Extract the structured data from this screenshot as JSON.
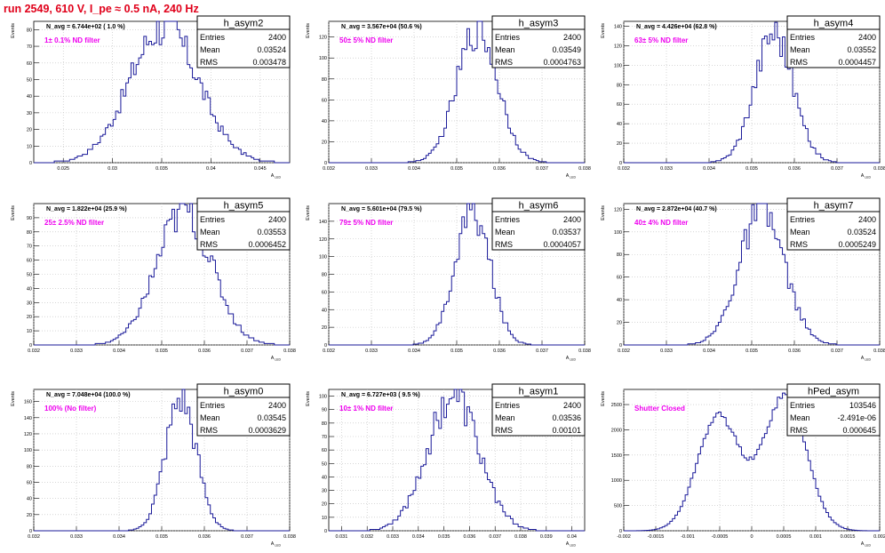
{
  "page_title": "run 2549,   610 V, I_pe ≈ 0.5 nA, 240 Hz",
  "stats_labels": {
    "entries": "Entries",
    "mean": "Mean",
    "rms": "RMS"
  },
  "colors": {
    "hist": "#1a1a99",
    "magenta": "#ee00ee",
    "title_red": "#e0001a",
    "grid": "#bdbdbd"
  },
  "chart_data": [
    {
      "type": "histogram",
      "name": "h_asym2",
      "nav_text": "N_avg = 6.744e+02 ( 1.0 %)",
      "filter": "1± 0.1% ND filter",
      "entries": "2400",
      "mean": "0.03524",
      "rms": "0.003478",
      "xlim": [
        0.022,
        0.048
      ],
      "ylim": [
        0,
        85
      ],
      "xticks": [
        "0.025",
        "0.03",
        "0.035",
        "0.04",
        "0.045"
      ],
      "xtick_values": [
        0.025,
        0.03,
        0.035,
        0.04,
        0.045
      ],
      "yticks": [
        0,
        10,
        20,
        30,
        40,
        50,
        60,
        70,
        80
      ],
      "xlabel": "A_LED",
      "ylabel": "Events",
      "bins": 100,
      "peak": 82,
      "sigma": 0.003478,
      "mu": 0.03524,
      "dist": "gauss"
    },
    {
      "type": "histogram",
      "name": "h_asym3",
      "nav_text": "N_avg = 3.567e+04 (50.6 %)",
      "filter": "50± 5% ND filter",
      "entries": "2400",
      "mean": "0.03549",
      "rms": "0.0004763",
      "xlim": [
        0.032,
        0.038
      ],
      "ylim": [
        0,
        135
      ],
      "xticks": [
        "0.032",
        "0.033",
        "0.034",
        "0.035",
        "0.036",
        "0.037",
        "0.038"
      ],
      "xtick_values": [
        0.032,
        0.033,
        0.034,
        0.035,
        0.036,
        0.037,
        0.038
      ],
      "yticks": [
        0,
        20,
        40,
        60,
        80,
        100,
        120
      ],
      "xlabel": "A_LED",
      "ylabel": "Events",
      "bins": 100,
      "peak": 128,
      "sigma": 0.0004763,
      "mu": 0.03549,
      "dist": "gauss"
    },
    {
      "type": "histogram",
      "name": "h_asym4",
      "nav_text": "N_avg = 4.426e+04 (62.8 %)",
      "filter": "63± 5% ND filter",
      "entries": "2400",
      "mean": "0.03552",
      "rms": "0.0004457",
      "xlim": [
        0.032,
        0.038
      ],
      "ylim": [
        0,
        145
      ],
      "xticks": [
        "0.032",
        "0.033",
        "0.034",
        "0.035",
        "0.036",
        "0.037",
        "0.038"
      ],
      "xtick_values": [
        0.032,
        0.033,
        0.034,
        0.035,
        0.036,
        0.037,
        0.038
      ],
      "yticks": [
        0,
        20,
        40,
        60,
        80,
        100,
        120,
        140
      ],
      "xlabel": "A_LED",
      "ylabel": "Events",
      "bins": 100,
      "peak": 135,
      "sigma": 0.0004457,
      "mu": 0.03552,
      "dist": "gauss"
    },
    {
      "type": "histogram",
      "name": "h_asym5",
      "nav_text": "N_avg = 1.822e+04 (25.9 %)",
      "filter": "25± 2.5% ND filter",
      "entries": "2400",
      "mean": "0.03553",
      "rms": "0.0006452",
      "xlim": [
        0.032,
        0.038
      ],
      "ylim": [
        0,
        100
      ],
      "xticks": [
        "0.032",
        "0.033",
        "0.034",
        "0.035",
        "0.036",
        "0.037",
        "0.038"
      ],
      "xtick_values": [
        0.032,
        0.033,
        0.034,
        0.035,
        0.036,
        0.037,
        0.038
      ],
      "yticks": [
        0,
        10,
        20,
        30,
        40,
        50,
        60,
        70,
        80,
        90
      ],
      "xlabel": "A_LED",
      "ylabel": "Events",
      "bins": 100,
      "peak": 95,
      "sigma": 0.0006452,
      "mu": 0.03553,
      "dist": "gauss"
    },
    {
      "type": "histogram",
      "name": "h_asym6",
      "nav_text": "N_avg = 5.601e+04 (79.5 %)",
      "filter": "79± 5% ND filter",
      "entries": "2400",
      "mean": "0.03537",
      "rms": "0.0004057",
      "xlim": [
        0.032,
        0.038
      ],
      "ylim": [
        0,
        160
      ],
      "xticks": [
        "0.032",
        "0.033",
        "0.034",
        "0.035",
        "0.036",
        "0.037",
        "0.038"
      ],
      "xtick_values": [
        0.032,
        0.033,
        0.034,
        0.035,
        0.036,
        0.037,
        0.038
      ],
      "yticks": [
        0,
        20,
        40,
        60,
        80,
        100,
        120,
        140
      ],
      "xlabel": "A_LED",
      "ylabel": "Events",
      "bins": 100,
      "peak": 152,
      "sigma": 0.0004057,
      "mu": 0.03537,
      "dist": "gauss"
    },
    {
      "type": "histogram",
      "name": "h_asym7",
      "nav_text": "N_avg = 2.872e+04 (40.7 %)",
      "filter": "40± 4% ND filter",
      "entries": "2400",
      "mean": "0.03524",
      "rms": "0.0005249",
      "xlim": [
        0.032,
        0.038
      ],
      "ylim": [
        0,
        125
      ],
      "xticks": [
        "0.032",
        "0.033",
        "0.034",
        "0.035",
        "0.036",
        "0.037",
        "0.038"
      ],
      "xtick_values": [
        0.032,
        0.033,
        0.034,
        0.035,
        0.036,
        0.037,
        0.038
      ],
      "yticks": [
        0,
        20,
        40,
        60,
        80,
        100,
        120
      ],
      "xlabel": "A_LED",
      "ylabel": "Events",
      "bins": 100,
      "peak": 118,
      "sigma": 0.0005249,
      "mu": 0.03524,
      "dist": "gauss"
    },
    {
      "type": "histogram",
      "name": "h_asym0",
      "nav_text": "N_avg = 7.048e+04 (100.0 %)",
      "filter": "100% (No filter)",
      "entries": "2400",
      "mean": "0.03545",
      "rms": "0.0003629",
      "xlim": [
        0.032,
        0.038
      ],
      "ylim": [
        0,
        175
      ],
      "xticks": [
        "0.032",
        "0.033",
        "0.034",
        "0.035",
        "0.036",
        "0.037",
        "0.038"
      ],
      "xtick_values": [
        0.032,
        0.033,
        0.034,
        0.035,
        0.036,
        0.037,
        0.038
      ],
      "yticks": [
        0,
        20,
        40,
        60,
        80,
        100,
        120,
        140,
        160
      ],
      "xlabel": "A_LED",
      "ylabel": "Events",
      "bins": 100,
      "peak": 163,
      "sigma": 0.0003629,
      "mu": 0.03545,
      "dist": "gauss"
    },
    {
      "type": "histogram",
      "name": "h_asym1",
      "nav_text": "N_avg = 6.727e+03 ( 9.5 %)",
      "filter": "10± 1% ND filter",
      "entries": "2400",
      "mean": "0.03536",
      "rms": "0.00101",
      "xlim": [
        0.0305,
        0.0405
      ],
      "ylim": [
        0,
        105
      ],
      "xticks": [
        "0.031",
        "0.032",
        "0.033",
        "0.034",
        "0.035",
        "0.036",
        "0.037",
        "0.038",
        "0.039",
        "0.04"
      ],
      "xtick_values": [
        0.031,
        0.032,
        0.033,
        0.034,
        0.035,
        0.036,
        0.037,
        0.038,
        0.039,
        0.04
      ],
      "yticks": [
        0,
        10,
        20,
        30,
        40,
        50,
        60,
        70,
        80,
        90,
        100
      ],
      "xlabel": "A_LED",
      "ylabel": "Events",
      "bins": 100,
      "peak": 100,
      "sigma": 0.00101,
      "mu": 0.03536,
      "dist": "gauss"
    },
    {
      "type": "histogram",
      "name": "hPed_asym",
      "nav_text": "",
      "filter": "Shutter Closed",
      "entries": "103546",
      "mean": "-2.491e-06",
      "rms": "0.000645",
      "xlim": [
        -0.002,
        0.002
      ],
      "ylim": [
        0,
        2800
      ],
      "xticks": [
        "-0.002",
        "-0.0015",
        "-0.001",
        "-0.0005",
        "0",
        "0.0005",
        "0.001",
        "0.0015",
        "0.002"
      ],
      "xtick_values": [
        -0.002,
        -0.0015,
        -0.001,
        -0.0005,
        0,
        0.0005,
        0.001,
        0.0015,
        0.002
      ],
      "yticks": [
        0,
        500,
        1000,
        1500,
        2000,
        2500
      ],
      "xlabel": "A_LED",
      "ylabel": "Events",
      "bins": 100,
      "peak": 2700,
      "dist": "bimodal"
    }
  ]
}
